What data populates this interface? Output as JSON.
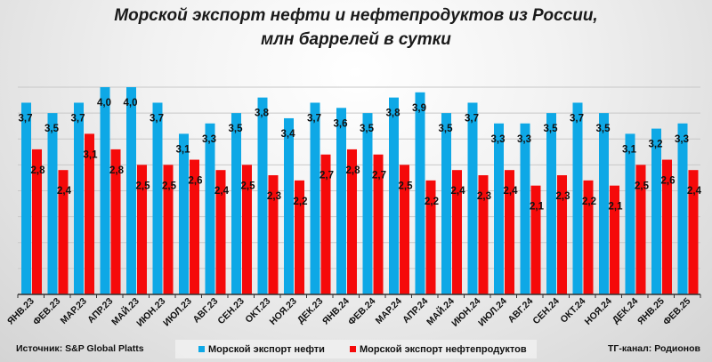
{
  "chart_data": {
    "type": "bar",
    "title": "Морской экспорт нефти и нефтепродуктов из России,",
    "subtitle": "млн баррелей в сутки",
    "categories": [
      "ЯНВ.23",
      "ФЕВ.23",
      "МАР.23",
      "АПР.23",
      "МАЙ.23",
      "ИЮН.23",
      "ИЮЛ.23",
      "АВГ.23",
      "СЕН.23",
      "ОКТ.23",
      "НОЯ.23",
      "ДЕК.23",
      "ЯНВ.24",
      "ФЕВ.24",
      "МАР.24",
      "АПР.24",
      "МАЙ.24",
      "ИЮН.24",
      "ИЮЛ.24",
      "АВГ.24",
      "СЕН.24",
      "ОКТ.24",
      "НОЯ.24",
      "ДЕК.24",
      "ЯНВ.25",
      "ФЕВ.25"
    ],
    "series": [
      {
        "name": "Морской экспорт нефти",
        "color": "#0ea8e6",
        "values": [
          3.7,
          3.5,
          3.7,
          4.0,
          4.0,
          3.7,
          3.1,
          3.3,
          3.5,
          3.8,
          3.4,
          3.7,
          3.6,
          3.5,
          3.8,
          3.9,
          3.5,
          3.7,
          3.3,
          3.3,
          3.5,
          3.7,
          3.5,
          3.1,
          3.2,
          3.3
        ],
        "labels": [
          "3,7",
          "3,5",
          "3,7",
          "4,0",
          "4,0",
          "3,7",
          "3,1",
          "3,3",
          "3,5",
          "3,8",
          "3,4",
          "3,7",
          "3,6",
          "3,5",
          "3,8",
          "3,9",
          "3,5",
          "3,7",
          "3,3",
          "3,3",
          "3,5",
          "3,7",
          "3,5",
          "3,1",
          "3,2",
          "3,3"
        ]
      },
      {
        "name": "Морской экспорт нефтепродуктов",
        "color": "#f50a0a",
        "values": [
          2.8,
          2.4,
          3.1,
          2.8,
          2.5,
          2.5,
          2.6,
          2.4,
          2.5,
          2.3,
          2.2,
          2.7,
          2.8,
          2.7,
          2.5,
          2.2,
          2.4,
          2.3,
          2.4,
          2.1,
          2.3,
          2.2,
          2.1,
          2.5,
          2.6,
          2.4
        ],
        "labels": [
          "2,8",
          "2,4",
          "3,1",
          "2,8",
          "2,5",
          "2,5",
          "2,6",
          "2,4",
          "2,5",
          "2,3",
          "2,2",
          "2,7",
          "2,8",
          "2,7",
          "2,5",
          "2,2",
          "2,4",
          "2,3",
          "2,4",
          "2,1",
          "2,3",
          "2,2",
          "2,1",
          "2,5",
          "2,6",
          "2,4"
        ]
      }
    ],
    "ylim": [
      0,
      4
    ],
    "grid": true,
    "legend": "bottom"
  },
  "footer": {
    "source": "Источник: S&P Global Platts",
    "credit": "ТГ-канал: Родионов"
  }
}
